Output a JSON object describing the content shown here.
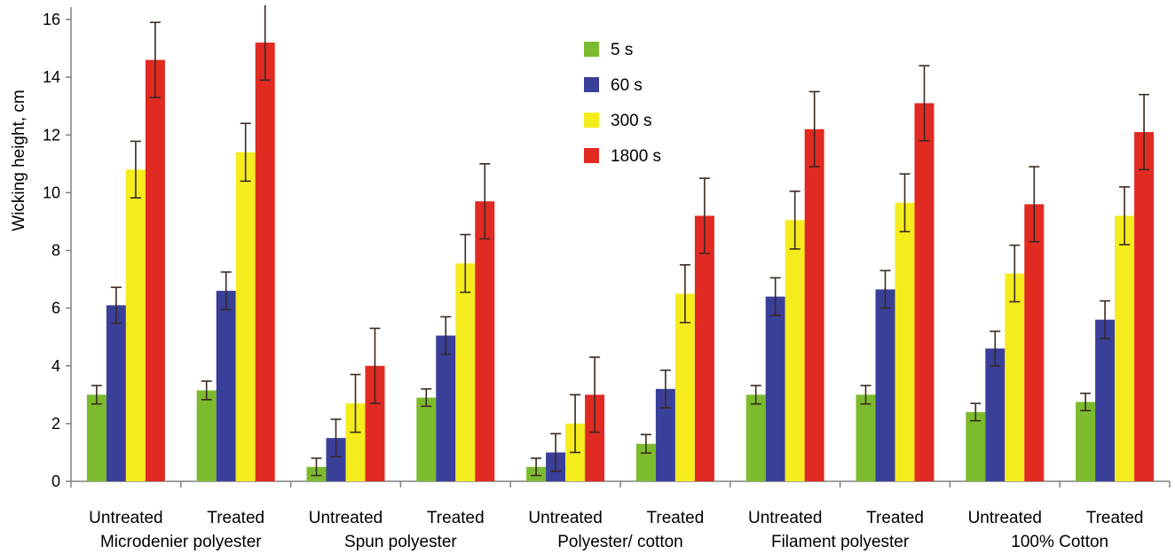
{
  "chart_data": {
    "type": "bar",
    "ylabel": "Wicking height, cm",
    "xlabel": "",
    "title": "",
    "ylim": [
      0,
      16
    ],
    "yticks": [
      0,
      2,
      4,
      6,
      8,
      10,
      12,
      14,
      16
    ],
    "categories": [
      "Untreated",
      "Treated",
      "Untreated",
      "Treated",
      "Untreated",
      "Treated",
      "Untreated",
      "Treated",
      "Untreated",
      "Treated"
    ],
    "groups": [
      {
        "label": "Microdenier polyester",
        "span": [
          0,
          1
        ]
      },
      {
        "label": "Spun polyester",
        "span": [
          2,
          3
        ]
      },
      {
        "label": "Polyester/ cotton",
        "span": [
          4,
          5
        ]
      },
      {
        "label": "Filament polyester",
        "span": [
          6,
          7
        ]
      },
      {
        "label": "100% Cotton",
        "span": [
          8,
          9
        ]
      }
    ],
    "series": [
      {
        "name": "5 s",
        "color": "#7dbb2e",
        "values": [
          3.0,
          3.15,
          0.5,
          2.9,
          0.5,
          1.3,
          3.0,
          3.0,
          2.4,
          2.75
        ],
        "errors": [
          0.32,
          0.32,
          0.3,
          0.3,
          0.3,
          0.32,
          0.32,
          0.32,
          0.3,
          0.3
        ]
      },
      {
        "name": "60 s",
        "color": "#3a3f9a",
        "values": [
          6.1,
          6.6,
          1.5,
          5.05,
          1.0,
          3.2,
          6.4,
          6.65,
          4.6,
          5.6
        ],
        "errors": [
          0.62,
          0.65,
          0.65,
          0.65,
          0.65,
          0.65,
          0.65,
          0.65,
          0.6,
          0.65
        ]
      },
      {
        "name": "300 s",
        "color": "#f5ec1e",
        "values": [
          10.8,
          11.4,
          2.7,
          7.55,
          2.0,
          6.5,
          9.05,
          9.65,
          7.2,
          9.2
        ],
        "errors": [
          0.98,
          1.0,
          1.0,
          1.0,
          1.0,
          1.0,
          1.0,
          1.0,
          0.98,
          1.0
        ]
      },
      {
        "name": "1800 s",
        "color": "#e02a22",
        "values": [
          14.6,
          15.2,
          4.0,
          9.7,
          3.0,
          9.2,
          12.2,
          13.1,
          9.6,
          12.1
        ],
        "errors": [
          1.3,
          1.3,
          1.3,
          1.3,
          1.3,
          1.3,
          1.3,
          1.3,
          1.3,
          1.3
        ]
      }
    ],
    "legend_position": "top-center",
    "grid": false
  }
}
